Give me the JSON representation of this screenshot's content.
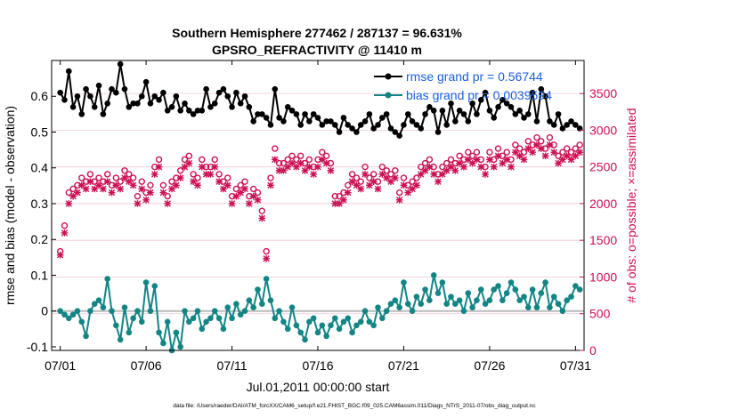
{
  "chart_data": {
    "type": "line",
    "title": "Southern Hemisphere 277462 / 287137 = 96.631%",
    "subtitle": "GPSRO_REFRACTIVITY @ 11410 m",
    "xlabel": "Jul.01,2011 00:00:00 start",
    "ylabel": "rmse and bias (model - observation)",
    "y2label": "# of obs: o=possible; ×=assimilated",
    "footer": "data file: /Users/raeder/DAI/ATM_forcXX/CAM6_setup/f.e21.FHIST_BGC.f09_025.CAM6assim.011/Diags_NTrS_2011-07/obs_diag_output.nc",
    "xlim": [
      0.5,
      31.5
    ],
    "ylim": [
      -0.11,
      0.7
    ],
    "y2lim": [
      0,
      3950
    ],
    "x_ticks": [
      {
        "label": "07/01",
        "value": 1
      },
      {
        "label": "07/06",
        "value": 6
      },
      {
        "label": "07/11",
        "value": 11
      },
      {
        "label": "07/16",
        "value": 16
      },
      {
        "label": "07/21",
        "value": 21
      },
      {
        "label": "07/26",
        "value": 26
      },
      {
        "label": "07/31",
        "value": 31
      }
    ],
    "y_ticks": [
      {
        "label": "-0.1",
        "value": -0.1
      },
      {
        "label": "0",
        "value": 0
      },
      {
        "label": "0.1",
        "value": 0.1
      },
      {
        "label": "0.2",
        "value": 0.2
      },
      {
        "label": "0.3",
        "value": 0.3
      },
      {
        "label": "0.4",
        "value": 0.4
      },
      {
        "label": "0.5",
        "value": 0.5
      },
      {
        "label": "0.6",
        "value": 0.6
      }
    ],
    "y2_ticks": [
      {
        "label": "0",
        "value": 0
      },
      {
        "label": "500",
        "value": 500
      },
      {
        "label": "1000",
        "value": 1000
      },
      {
        "label": "1500",
        "value": 1500
      },
      {
        "label": "2000",
        "value": 2000
      },
      {
        "label": "2500",
        "value": 2500
      },
      {
        "label": "3000",
        "value": 3000
      },
      {
        "label": "3500",
        "value": 3500
      }
    ],
    "grid": true,
    "legend_position": "top-right",
    "colors": {
      "rmse": "#000000",
      "bias": "#138585",
      "obs": "#cc1054",
      "grid": "#f0c8d8",
      "legend": "#1a5fe0",
      "zero_line": "#bbbbbb"
    },
    "series": [
      {
        "name": "rmse grand pr = 0.56744",
        "axis": "left",
        "x": [
          1.0,
          1.25,
          1.5,
          1.75,
          2.0,
          2.25,
          2.5,
          2.75,
          3.0,
          3.25,
          3.5,
          3.75,
          4.0,
          4.25,
          4.5,
          4.75,
          5.0,
          5.25,
          5.5,
          5.75,
          6.0,
          6.25,
          6.5,
          6.75,
          7.0,
          7.25,
          7.5,
          7.75,
          8.0,
          8.25,
          8.5,
          8.75,
          9.0,
          9.25,
          9.5,
          9.75,
          10.0,
          10.25,
          10.5,
          10.75,
          11.0,
          11.25,
          11.5,
          11.75,
          12.0,
          12.25,
          12.5,
          12.75,
          13.0,
          13.25,
          13.5,
          13.75,
          14.0,
          14.25,
          14.5,
          14.75,
          15.0,
          15.25,
          15.5,
          15.75,
          16.0,
          16.25,
          16.5,
          16.75,
          17.0,
          17.25,
          17.5,
          17.75,
          18.0,
          18.25,
          18.5,
          18.75,
          19.0,
          19.25,
          19.5,
          19.75,
          20.0,
          20.25,
          20.5,
          20.75,
          21.0,
          21.25,
          21.5,
          21.75,
          22.0,
          22.25,
          22.5,
          22.75,
          23.0,
          23.25,
          23.5,
          23.75,
          24.0,
          24.25,
          24.5,
          24.75,
          25.0,
          25.25,
          25.5,
          25.75,
          26.0,
          26.25,
          26.5,
          26.75,
          27.0,
          27.25,
          27.5,
          27.75,
          28.0,
          28.25,
          28.5,
          28.75,
          29.0,
          29.25,
          29.5,
          29.75,
          30.0,
          30.25,
          30.5,
          30.75,
          31.0,
          31.25
        ],
        "y": [
          0.61,
          0.59,
          0.67,
          0.57,
          0.6,
          0.55,
          0.62,
          0.6,
          0.57,
          0.63,
          0.55,
          0.58,
          0.62,
          0.61,
          0.69,
          0.62,
          0.57,
          0.58,
          0.58,
          0.6,
          0.64,
          0.58,
          0.6,
          0.59,
          0.61,
          0.56,
          0.57,
          0.6,
          0.56,
          0.58,
          0.56,
          0.55,
          0.56,
          0.56,
          0.62,
          0.57,
          0.58,
          0.61,
          0.62,
          0.6,
          0.57,
          0.61,
          0.58,
          0.6,
          0.57,
          0.53,
          0.55,
          0.55,
          0.54,
          0.52,
          0.62,
          0.54,
          0.53,
          0.57,
          0.56,
          0.55,
          0.52,
          0.55,
          0.53,
          0.55,
          0.54,
          0.52,
          0.53,
          0.53,
          0.52,
          0.5,
          0.54,
          0.52,
          0.51,
          0.5,
          0.52,
          0.53,
          0.55,
          0.51,
          0.52,
          0.54,
          0.55,
          0.51,
          0.5,
          0.49,
          0.52,
          0.55,
          0.53,
          0.52,
          0.51,
          0.55,
          0.57,
          0.56,
          0.5,
          0.56,
          0.52,
          0.58,
          0.53,
          0.56,
          0.55,
          0.53,
          0.58,
          0.55,
          0.59,
          0.61,
          0.56,
          0.54,
          0.57,
          0.59,
          0.58,
          0.57,
          0.55,
          0.56,
          0.54,
          0.55,
          0.61,
          0.53,
          0.62,
          0.6,
          0.53,
          0.52,
          0.55,
          0.51,
          0.52,
          0.53,
          0.52,
          0.51
        ]
      },
      {
        "name": "bias grand pr = 0.0039594",
        "axis": "left",
        "x": [
          1.0,
          1.25,
          1.5,
          1.75,
          2.0,
          2.25,
          2.5,
          2.75,
          3.0,
          3.25,
          3.5,
          3.75,
          4.0,
          4.25,
          4.5,
          4.75,
          5.0,
          5.25,
          5.5,
          5.75,
          6.0,
          6.25,
          6.5,
          6.75,
          7.0,
          7.25,
          7.5,
          7.75,
          8.0,
          8.25,
          8.5,
          8.75,
          9.0,
          9.25,
          9.5,
          9.75,
          10.0,
          10.25,
          10.5,
          10.75,
          11.0,
          11.25,
          11.5,
          11.75,
          12.0,
          12.25,
          12.5,
          12.75,
          13.0,
          13.25,
          13.5,
          13.75,
          14.0,
          14.25,
          14.5,
          14.75,
          15.0,
          15.25,
          15.5,
          15.75,
          16.0,
          16.25,
          16.5,
          16.75,
          17.0,
          17.25,
          17.5,
          17.75,
          18.0,
          18.25,
          18.5,
          18.75,
          19.0,
          19.25,
          19.5,
          19.75,
          20.0,
          20.25,
          20.5,
          20.75,
          21.0,
          21.25,
          21.5,
          21.75,
          22.0,
          22.25,
          22.5,
          22.75,
          23.0,
          23.25,
          23.5,
          23.75,
          24.0,
          24.25,
          24.5,
          24.75,
          25.0,
          25.25,
          25.5,
          25.75,
          26.0,
          26.25,
          26.5,
          26.75,
          27.0,
          27.25,
          27.5,
          27.75,
          28.0,
          28.25,
          28.5,
          28.75,
          29.0,
          29.25,
          29.5,
          29.75,
          30.0,
          30.25,
          30.5,
          30.75,
          31.0,
          31.25
        ],
        "y": [
          0.0,
          -0.01,
          -0.02,
          -0.01,
          0.0,
          -0.03,
          -0.07,
          0.0,
          0.02,
          0.03,
          0.01,
          0.09,
          0.0,
          -0.04,
          -0.08,
          0.01,
          -0.06,
          -0.02,
          0.0,
          -0.03,
          0.08,
          0.0,
          0.07,
          -0.06,
          -0.09,
          -0.03,
          -0.11,
          -0.06,
          -0.1,
          0.0,
          -0.03,
          -0.02,
          0.0,
          -0.05,
          -0.03,
          -0.02,
          0.0,
          -0.02,
          -0.05,
          0.01,
          -0.02,
          0.02,
          -0.01,
          0.0,
          0.03,
          0.01,
          0.06,
          0.02,
          0.09,
          0.03,
          -0.02,
          0.0,
          -0.03,
          -0.05,
          0.01,
          -0.04,
          -0.06,
          -0.08,
          -0.03,
          -0.02,
          -0.06,
          -0.04,
          -0.07,
          -0.04,
          -0.02,
          -0.05,
          -0.03,
          -0.02,
          -0.06,
          -0.04,
          -0.03,
          0.0,
          -0.03,
          -0.04,
          0.01,
          -0.02,
          0.0,
          0.02,
          0.03,
          0.01,
          0.08,
          0.02,
          0.0,
          0.04,
          0.02,
          0.06,
          0.03,
          0.1,
          0.05,
          0.08,
          0.02,
          0.04,
          0.02,
          0.03,
          0.0,
          0.05,
          0.01,
          0.03,
          0.06,
          0.02,
          0.03,
          0.06,
          0.07,
          0.03,
          0.05,
          0.08,
          0.06,
          0.03,
          0.04,
          0.01,
          0.06,
          0.01,
          0.05,
          0.08,
          0.01,
          0.04,
          0.02,
          0.0,
          0.03,
          0.04,
          0.07,
          0.06
        ]
      },
      {
        "name": "# of obs possible",
        "axis": "right",
        "marker": "o",
        "x": [
          1.0,
          1.25,
          1.5,
          1.75,
          2.0,
          2.25,
          2.5,
          2.75,
          3.0,
          3.25,
          3.5,
          3.75,
          4.0,
          4.25,
          4.5,
          4.75,
          5.0,
          5.25,
          5.5,
          5.75,
          6.0,
          6.25,
          6.5,
          6.75,
          7.0,
          7.25,
          7.5,
          7.75,
          8.0,
          8.25,
          8.5,
          8.75,
          9.0,
          9.25,
          9.5,
          9.75,
          10.0,
          10.25,
          10.5,
          10.75,
          11.0,
          11.25,
          11.5,
          11.75,
          12.0,
          12.25,
          12.5,
          12.75,
          13.0,
          13.25,
          13.5,
          13.75,
          14.0,
          14.25,
          14.5,
          14.75,
          15.0,
          15.25,
          15.5,
          15.75,
          16.0,
          16.25,
          16.5,
          16.75,
          17.0,
          17.25,
          17.5,
          17.75,
          18.0,
          18.25,
          18.5,
          18.75,
          19.0,
          19.25,
          19.5,
          19.75,
          20.0,
          20.25,
          20.5,
          20.75,
          21.0,
          21.25,
          21.5,
          21.75,
          22.0,
          22.25,
          22.5,
          22.75,
          23.0,
          23.25,
          23.5,
          23.75,
          24.0,
          24.25,
          24.5,
          24.75,
          25.0,
          25.25,
          25.5,
          25.75,
          26.0,
          26.25,
          26.5,
          26.75,
          27.0,
          27.25,
          27.5,
          27.75,
          28.0,
          28.25,
          28.5,
          28.75,
          29.0,
          29.25,
          29.5,
          29.75,
          30.0,
          30.25,
          30.5,
          30.75,
          31.0,
          31.25
        ],
        "y": [
          1350,
          1700,
          2150,
          2200,
          2250,
          2350,
          2300,
          2400,
          2300,
          2350,
          2300,
          2400,
          2250,
          2350,
          2300,
          2450,
          2400,
          2350,
          2100,
          2300,
          2150,
          2250,
          2500,
          2600,
          2250,
          2100,
          2300,
          2350,
          2450,
          2600,
          2650,
          2400,
          2350,
          2600,
          2500,
          2500,
          2600,
          2400,
          2300,
          2350,
          2100,
          2200,
          2250,
          2300,
          2100,
          2200,
          2150,
          1900,
          1350,
          2350,
          2750,
          2550,
          2550,
          2600,
          2650,
          2600,
          2650,
          2550,
          2600,
          2500,
          2600,
          2700,
          2650,
          2550,
          2100,
          2100,
          2150,
          2250,
          2400,
          2350,
          2300,
          2500,
          2350,
          2400,
          2300,
          2500,
          2450,
          2400,
          2450,
          2150,
          2350,
          2250,
          2300,
          2350,
          2500,
          2550,
          2600,
          2500,
          2400,
          2500,
          2550,
          2600,
          2550,
          2650,
          2600,
          2700,
          2650,
          2700,
          2600,
          2500,
          2700,
          2600,
          2750,
          2650,
          2700,
          2600,
          2800,
          2750,
          2700,
          2850,
          2800,
          2900,
          2850,
          2750,
          2900,
          2800,
          2650,
          2700,
          2750,
          2700,
          2750,
          2800
        ]
      },
      {
        "name": "# of obs assimilated",
        "axis": "right",
        "marker": "x",
        "x": [
          1.0,
          1.25,
          1.5,
          1.75,
          2.0,
          2.25,
          2.5,
          2.75,
          3.0,
          3.25,
          3.5,
          3.75,
          4.0,
          4.25,
          4.5,
          4.75,
          5.0,
          5.25,
          5.5,
          5.75,
          6.0,
          6.25,
          6.5,
          6.75,
          7.0,
          7.25,
          7.5,
          7.75,
          8.0,
          8.25,
          8.5,
          8.75,
          9.0,
          9.25,
          9.5,
          9.75,
          10.0,
          10.25,
          10.5,
          10.75,
          11.0,
          11.25,
          11.5,
          11.75,
          12.0,
          12.25,
          12.5,
          12.75,
          13.0,
          13.25,
          13.5,
          13.75,
          14.0,
          14.25,
          14.5,
          14.75,
          15.0,
          15.25,
          15.5,
          15.75,
          16.0,
          16.25,
          16.5,
          16.75,
          17.0,
          17.25,
          17.5,
          17.75,
          18.0,
          18.25,
          18.5,
          18.75,
          19.0,
          19.25,
          19.5,
          19.75,
          20.0,
          20.25,
          20.5,
          20.75,
          21.0,
          21.25,
          21.5,
          21.75,
          22.0,
          22.25,
          22.5,
          22.75,
          23.0,
          23.25,
          23.5,
          23.75,
          24.0,
          24.25,
          24.5,
          24.75,
          25.0,
          25.25,
          25.5,
          25.75,
          26.0,
          26.25,
          26.5,
          26.75,
          27.0,
          27.25,
          27.5,
          27.75,
          28.0,
          28.25,
          28.5,
          28.75,
          29.0,
          29.25,
          29.5,
          29.75,
          30.0,
          30.25,
          30.5,
          30.75,
          31.0,
          31.25
        ],
        "y": [
          1300,
          1600,
          2000,
          2100,
          2150,
          2250,
          2200,
          2300,
          2200,
          2250,
          2200,
          2300,
          2150,
          2250,
          2200,
          2350,
          2300,
          2250,
          2000,
          2200,
          2050,
          2150,
          2400,
          2500,
          2150,
          2000,
          2200,
          2250,
          2350,
          2500,
          2550,
          2300,
          2250,
          2500,
          2400,
          2400,
          2500,
          2300,
          2200,
          2250,
          2000,
          2100,
          2150,
          2200,
          2000,
          2100,
          2050,
          1800,
          1250,
          2250,
          2600,
          2450,
          2450,
          2500,
          2550,
          2500,
          2550,
          2450,
          2500,
          2400,
          2500,
          2600,
          2550,
          2450,
          2000,
          2000,
          2050,
          2150,
          2300,
          2250,
          2200,
          2400,
          2250,
          2300,
          2200,
          2400,
          2350,
          2300,
          2350,
          2050,
          2250,
          2150,
          2200,
          2250,
          2400,
          2450,
          2500,
          2400,
          2300,
          2400,
          2450,
          2500,
          2450,
          2550,
          2500,
          2600,
          2550,
          2600,
          2500,
          2400,
          2600,
          2500,
          2650,
          2550,
          2600,
          2500,
          2700,
          2650,
          2600,
          2750,
          2700,
          2800,
          2750,
          2650,
          2800,
          2700,
          2550,
          2600,
          2650,
          2600,
          2650,
          2700
        ]
      }
    ]
  }
}
